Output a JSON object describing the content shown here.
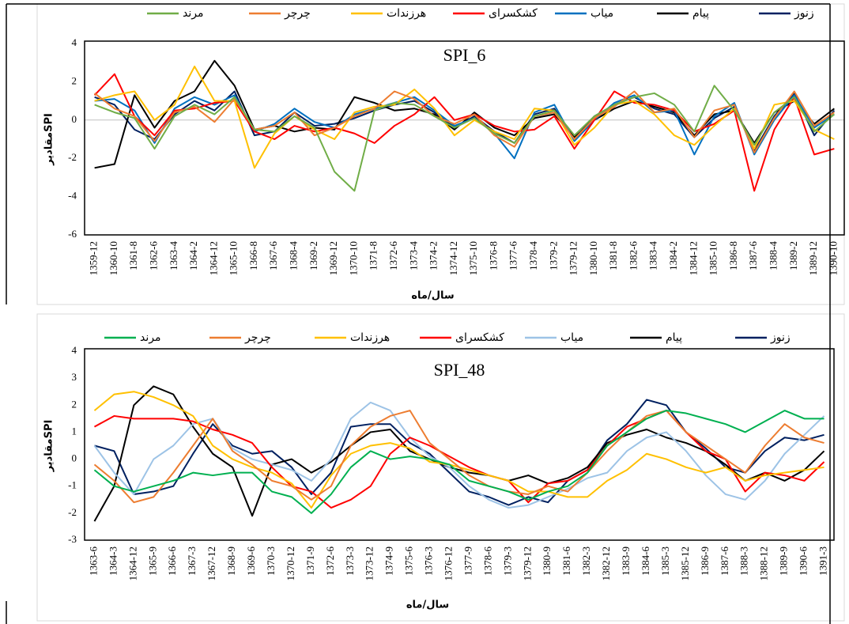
{
  "chart_data": [
    {
      "type": "line",
      "title": "SPI_6",
      "y_label": "مقادیرSPI",
      "x_label": "سال/ماه",
      "legend": "top",
      "ylim": [
        -6,
        4
      ],
      "yticks": [
        -6,
        -4,
        -2,
        0,
        2,
        4
      ],
      "categories": [
        "1359-12",
        "1360-10",
        "1361-8",
        "1362-6",
        "1363-4",
        "1364-2",
        "1364-12",
        "1365-10",
        "1366-8",
        "1367-6",
        "1368-4",
        "1369-2",
        "1369-12",
        "1370-10",
        "1371-8",
        "1372-6",
        "1373-4",
        "1374-2",
        "1374-12",
        "1375-10",
        "1376-8",
        "1377-6",
        "1378-4",
        "1379-2",
        "1379-12",
        "1380-10",
        "1381-8",
        "1382-6",
        "1383-4",
        "1384-2",
        "1384-12",
        "1385-10",
        "1386-8",
        "1387-6",
        "1388-4",
        "1389-2",
        "1389-12",
        "1390-10"
      ],
      "series": [
        {
          "name": "زنوز",
          "color": "#002060",
          "values": [
            1.2,
            0.8,
            -0.5,
            -1.0,
            0.3,
            1.0,
            0.5,
            1.5,
            -0.8,
            -0.6,
            0.4,
            -0.3,
            -0.2,
            0.1,
            0.5,
            0.8,
            1.0,
            0.4,
            -0.4,
            0.2,
            -0.6,
            -1.2,
            0.3,
            0.6,
            -1.0,
            0.2,
            0.8,
            1.2,
            0.6,
            0.3,
            -0.9,
            0.1,
            0.7,
            -1.6,
            0.2,
            1.4,
            -0.8,
            0.5
          ]
        },
        {
          "name": "پیام",
          "color": "#000000",
          "values": [
            -2.5,
            -2.3,
            1.3,
            -0.4,
            1.0,
            1.5,
            3.1,
            1.8,
            -0.5,
            -0.3,
            -0.6,
            -0.4,
            -0.5,
            1.2,
            0.9,
            0.5,
            0.6,
            0.3,
            -0.5,
            0.4,
            -0.4,
            -0.8,
            0.1,
            0.3,
            -0.9,
            0.0,
            0.6,
            1.0,
            0.7,
            0.4,
            -0.8,
            0.3,
            0.5,
            -1.2,
            0.4,
            1.0,
            -0.2,
            0.6
          ]
        },
        {
          "name": "میاب",
          "color": "#0070c0",
          "values": [
            1.0,
            1.1,
            0.5,
            -1.2,
            0.6,
            1.2,
            0.8,
            1.3,
            -0.6,
            -0.2,
            0.6,
            -0.1,
            -0.4,
            0.3,
            0.6,
            0.9,
            1.2,
            0.5,
            -0.3,
            0.1,
            -0.7,
            -2.0,
            0.4,
            0.8,
            -1.1,
            0.0,
            0.9,
            1.3,
            0.4,
            0.5,
            -1.8,
            0.2,
            0.9,
            -1.8,
            0.0,
            1.3,
            -0.4,
            0.3
          ]
        },
        {
          "name": "کشکسرای",
          "color": "#ff0000",
          "values": [
            1.3,
            2.4,
            0.2,
            -0.8,
            0.5,
            0.6,
            0.9,
            1.0,
            -0.6,
            -1.0,
            -0.3,
            -0.6,
            -0.4,
            -0.7,
            -1.2,
            -0.3,
            0.3,
            1.2,
            0.0,
            0.3,
            -0.3,
            -0.6,
            -0.5,
            0.2,
            -1.5,
            0.0,
            1.5,
            0.9,
            0.8,
            0.5,
            -0.6,
            -0.2,
            0.5,
            -3.7,
            -0.5,
            1.2,
            -1.8,
            -1.5
          ]
        },
        {
          "name": "هرزندات",
          "color": "#ffc000",
          "values": [
            1.0,
            1.3,
            1.5,
            0.0,
            0.8,
            2.8,
            1.0,
            1.0,
            -2.5,
            -0.7,
            0.2,
            -0.5,
            -1.0,
            0.4,
            0.7,
            0.8,
            1.6,
            0.6,
            -0.8,
            0.0,
            -0.6,
            -1.0,
            0.6,
            0.5,
            -1.3,
            -0.4,
            0.8,
            1.0,
            0.3,
            -0.8,
            -1.3,
            -0.3,
            0.6,
            -1.5,
            0.8,
            1.0,
            -0.5,
            -1.0
          ]
        },
        {
          "name": "چرچر",
          "color": "#ed7d31",
          "values": [
            1.4,
            0.6,
            0.2,
            -1.1,
            0.4,
            0.7,
            -0.1,
            1.1,
            -0.5,
            -0.3,
            0.4,
            -0.8,
            -0.4,
            0.2,
            0.6,
            1.5,
            1.1,
            0.2,
            -0.2,
            0.3,
            -0.8,
            -1.4,
            0.2,
            0.4,
            -1.0,
            0.1,
            0.7,
            1.5,
            0.4,
            0.6,
            -0.9,
            0.5,
            0.8,
            -1.7,
            0.1,
            1.5,
            -0.3,
            0.4
          ]
        },
        {
          "name": "مرند",
          "color": "#70ad47",
          "values": [
            0.8,
            0.4,
            0.1,
            -1.5,
            0.2,
            0.8,
            0.3,
            1.2,
            -0.5,
            -0.6,
            0.2,
            -0.4,
            -2.7,
            -3.7,
            0.5,
            0.9,
            0.8,
            0.2,
            -0.4,
            0.1,
            -0.7,
            -1.2,
            0.2,
            0.5,
            -0.8,
            0.2,
            0.8,
            1.2,
            1.4,
            0.8,
            -0.6,
            1.8,
            0.5,
            -1.3,
            0.4,
            1.2,
            -0.6,
            0.3
          ]
        }
      ]
    },
    {
      "type": "line",
      "title": "SPI_48",
      "y_label": "مقادیرSPI",
      "x_label": "سال/ماه",
      "legend": "top",
      "ylim": [
        -3,
        4
      ],
      "yticks": [
        -3,
        -2,
        -1,
        0,
        1,
        2,
        3,
        4
      ],
      "categories": [
        "1363-6",
        "1364-3",
        "1364-12",
        "1365-9",
        "1366-6",
        "1367-3",
        "1367-12",
        "1368-9",
        "1369-6",
        "1370-3",
        "1370-12",
        "1371-9",
        "1372-6",
        "1373-3",
        "1373-12",
        "1374-9",
        "1375-6",
        "1376-3",
        "1376-12",
        "1377-9",
        "1378-6",
        "1379-3",
        "1379-12",
        "1380-9",
        "1381-6",
        "1382-3",
        "1382-12",
        "1383-9",
        "1384-6",
        "1385-3",
        "1385-12",
        "1386-9",
        "1387-6",
        "1388-3",
        "1388-12",
        "1389-9",
        "1390-6",
        "1391-3"
      ],
      "series": [
        {
          "name": "زنوز",
          "color": "#002060",
          "values": [
            0.5,
            0.3,
            -1.3,
            -1.2,
            -1.0,
            0.2,
            1.3,
            0.5,
            0.2,
            0.3,
            -0.3,
            -1.3,
            -0.5,
            1.2,
            1.3,
            1.3,
            0.6,
            0.2,
            -0.5,
            -1.2,
            -1.4,
            -1.7,
            -1.4,
            -1.6,
            -0.8,
            -0.4,
            0.7,
            1.3,
            2.2,
            2.0,
            1.0,
            0.4,
            -0.3,
            -0.5,
            0.3,
            0.8,
            0.7,
            0.9
          ]
        },
        {
          "name": "پیام",
          "color": "#000000",
          "values": [
            -2.3,
            -1.0,
            2.0,
            2.7,
            2.4,
            1.2,
            0.2,
            -0.3,
            -2.1,
            -0.2,
            0.0,
            -0.5,
            -0.1,
            0.5,
            1.0,
            1.1,
            0.3,
            0.0,
            -0.3,
            -0.5,
            -0.6,
            -0.8,
            -0.6,
            -0.9,
            -0.7,
            -0.3,
            0.6,
            0.9,
            1.1,
            0.8,
            0.6,
            0.3,
            -0.2,
            -0.8,
            -0.5,
            -0.8,
            -0.4,
            0.3
          ]
        },
        {
          "name": "میاب",
          "color": "#9dc3e6",
          "values": [
            0.5,
            -0.5,
            -1.3,
            0.0,
            0.5,
            1.3,
            1.5,
            0.4,
            0.0,
            -0.2,
            -0.4,
            -0.8,
            0.0,
            1.5,
            2.1,
            1.8,
            0.8,
            0.1,
            -0.3,
            -1.0,
            -1.5,
            -1.8,
            -1.7,
            -1.4,
            -1.1,
            -0.7,
            -0.5,
            0.3,
            0.8,
            1.0,
            0.3,
            -0.6,
            -1.3,
            -1.5,
            -0.8,
            0.2,
            0.9,
            1.6
          ]
        },
        {
          "name": "کشکسرای",
          "color": "#ff0000",
          "values": [
            1.2,
            1.6,
            1.5,
            1.5,
            1.5,
            1.4,
            1.1,
            0.9,
            0.6,
            -0.3,
            -1.0,
            -1.2,
            -1.8,
            -1.5,
            -1.0,
            0.2,
            0.8,
            0.5,
            0.1,
            -0.3,
            -0.6,
            -0.8,
            -1.6,
            -0.9,
            -0.8,
            -0.4,
            0.5,
            1.2,
            1.5,
            1.8,
            1.0,
            0.3,
            0.0,
            -1.2,
            -0.5,
            -0.6,
            -0.8,
            -0.1
          ]
        },
        {
          "name": "هرزندات",
          "color": "#ffc000",
          "values": [
            1.8,
            2.4,
            2.5,
            2.3,
            2.0,
            1.6,
            0.5,
            0.0,
            -0.3,
            -0.5,
            -0.9,
            -1.8,
            -0.6,
            0.2,
            0.5,
            0.6,
            0.4,
            -0.1,
            -0.2,
            -0.4,
            -0.6,
            -0.8,
            -1.2,
            -1.2,
            -1.4,
            -1.4,
            -0.8,
            -0.4,
            0.2,
            0.0,
            -0.3,
            -0.5,
            -0.3,
            -0.8,
            -0.6,
            -0.5,
            -0.4,
            -0.3
          ]
        },
        {
          "name": "چرچر",
          "color": "#ed7d31",
          "values": [
            -0.2,
            -0.8,
            -1.6,
            -1.4,
            -0.5,
            0.5,
            1.5,
            0.3,
            -0.2,
            -0.8,
            -1.0,
            -1.5,
            -1.0,
            0.5,
            1.2,
            1.6,
            1.8,
            0.6,
            0.0,
            -0.6,
            -1.0,
            -1.2,
            -1.3,
            -1.0,
            -1.2,
            -0.5,
            0.3,
            1.0,
            1.6,
            1.8,
            1.0,
            0.5,
            0.0,
            -0.5,
            0.5,
            1.3,
            0.8,
            0.6
          ]
        },
        {
          "name": "مرند",
          "color": "#00b050",
          "values": [
            -0.4,
            -1.0,
            -1.2,
            -1.0,
            -0.8,
            -0.5,
            -0.6,
            -0.5,
            -0.5,
            -1.2,
            -1.4,
            -2.0,
            -1.3,
            -0.3,
            0.3,
            0.0,
            0.1,
            0.0,
            -0.2,
            -0.8,
            -1.0,
            -1.2,
            -1.5,
            -1.2,
            -1.0,
            -0.5,
            0.5,
            1.0,
            1.5,
            1.8,
            1.7,
            1.5,
            1.3,
            1.0,
            1.4,
            1.8,
            1.5,
            1.5
          ]
        }
      ]
    }
  ]
}
